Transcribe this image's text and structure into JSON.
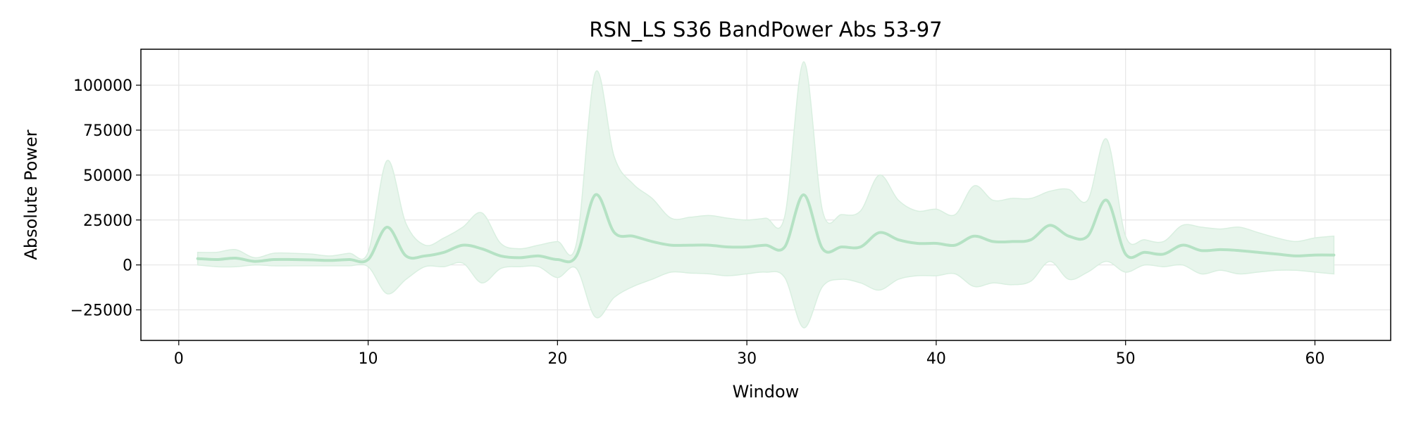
{
  "chart_data": {
    "type": "line",
    "title": "RSN_LS S36 BandPower Abs 53-97",
    "xlabel": "Window",
    "ylabel": "Absolute Power",
    "xlim": [
      -2,
      64
    ],
    "ylim": [
      -42000,
      120000
    ],
    "x_ticks": [
      0,
      10,
      20,
      30,
      40,
      50,
      60
    ],
    "x_tick_labels": [
      "0",
      "10",
      "20",
      "30",
      "40",
      "50",
      "60"
    ],
    "y_ticks": [
      -25000,
      0,
      25000,
      50000,
      75000,
      100000
    ],
    "y_tick_labels": [
      "−25000",
      "0",
      "25000",
      "50000",
      "75000",
      "100000"
    ],
    "grid": true,
    "colors": {
      "line": "#b5e2c4",
      "band": "#e8f5ec",
      "band_edge": "#d9efe0",
      "grid": "#e6e6e6"
    },
    "series": [
      {
        "x": [
          1,
          2,
          3,
          4,
          5,
          6,
          7,
          8,
          9,
          10,
          11,
          12,
          13,
          14,
          15,
          16,
          17,
          18,
          19,
          20,
          21,
          22,
          23,
          24,
          25,
          26,
          27,
          28,
          29,
          30,
          31,
          32,
          33,
          34,
          35,
          36,
          37,
          38,
          39,
          40,
          41,
          42,
          43,
          44,
          45,
          46,
          47,
          48,
          49,
          50,
          51,
          52,
          53,
          54,
          55,
          56,
          57,
          58,
          59,
          60,
          61
        ],
        "mean": [
          3500,
          3000,
          3800,
          2000,
          3000,
          3000,
          2800,
          2500,
          3000,
          3000,
          21000,
          5000,
          5000,
          7000,
          11000,
          9000,
          5000,
          4000,
          5000,
          3000,
          5000,
          39000,
          18000,
          16000,
          13000,
          11000,
          11000,
          11000,
          10000,
          10000,
          11000,
          10000,
          39000,
          9000,
          10000,
          10000,
          18000,
          14000,
          12000,
          12000,
          11000,
          16000,
          13000,
          13000,
          14000,
          22000,
          16000,
          16000,
          36000,
          6000,
          7000,
          6000,
          11000,
          8000,
          8500,
          8000,
          7000,
          6000,
          5000,
          5500,
          5500
        ],
        "upper": [
          7000,
          7000,
          8500,
          4000,
          6500,
          6500,
          6000,
          5000,
          6500,
          7000,
          58000,
          23000,
          11000,
          15000,
          21000,
          29000,
          12000,
          9000,
          11000,
          13000,
          12000,
          107000,
          60000,
          45000,
          37000,
          26000,
          26500,
          27500,
          26000,
          25000,
          26000,
          27000,
          113000,
          30000,
          28000,
          30000,
          50000,
          36000,
          30000,
          31000,
          28000,
          44000,
          36000,
          37000,
          37000,
          41000,
          42000,
          36000,
          70000,
          16000,
          14000,
          13000,
          22000,
          21000,
          20000,
          21000,
          18000,
          15000,
          13000,
          15000,
          16000
        ],
        "lower": [
          0,
          -1000,
          -1000,
          0,
          -500,
          -500,
          -500,
          -500,
          -500,
          -1000,
          -16000,
          -8000,
          -1000,
          -1000,
          1000,
          -10000,
          -2000,
          -1000,
          -1000,
          -7000,
          -2000,
          -29000,
          -18000,
          -12000,
          -8000,
          -4000,
          -4500,
          -5000,
          -6000,
          -5000,
          -4000,
          -7000,
          -35000,
          -12000,
          -8000,
          -10000,
          -14000,
          -8000,
          -6000,
          -6000,
          -5000,
          -12000,
          -10000,
          -11000,
          -9000,
          2000,
          -8000,
          -4000,
          2000,
          -4000,
          0,
          -1000,
          0,
          -5000,
          -3000,
          -5000,
          -4000,
          -3000,
          -3000,
          -4000,
          -5000
        ]
      }
    ]
  }
}
